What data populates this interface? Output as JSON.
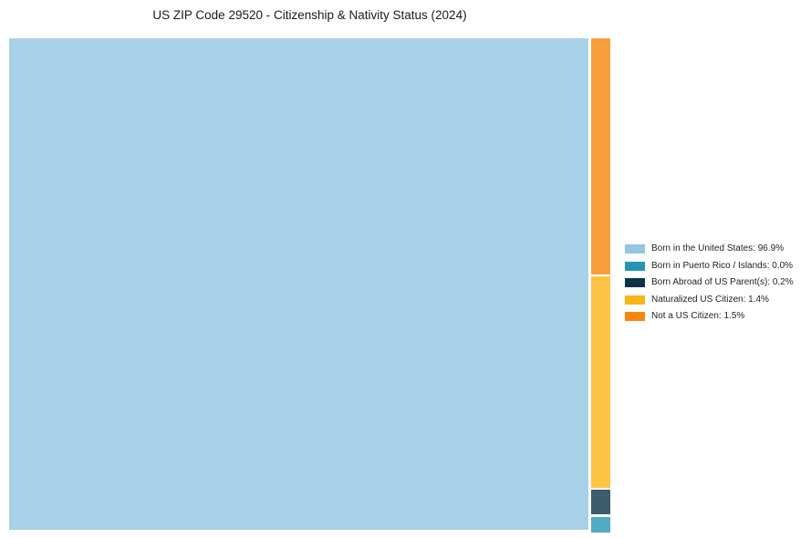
{
  "title": "US ZIP Code 29520 - Citizenship & Nativity Status (2024)",
  "chart_data": {
    "type": "treemap",
    "title": "US ZIP Code 29520 - Citizenship & Nativity Status (2024)",
    "unit": "%",
    "legend_position": "right",
    "background": "#ffffff",
    "block_opacity": 0.8,
    "series": [
      {
        "name": "Born in the United States",
        "value": 96.9,
        "color": "#92c6e2"
      },
      {
        "name": "Born in Puerto Rico / Islands",
        "value": 0.0,
        "color": "#2496b4"
      },
      {
        "name": "Born Abroad of US Parent(s)",
        "value": 0.2,
        "color": "#0e3349"
      },
      {
        "name": "Naturalized US Citizen",
        "value": 1.4,
        "color": "#fdb515"
      },
      {
        "name": "Not a US Citizen",
        "value": 1.5,
        "color": "#f6870c"
      }
    ]
  },
  "legend": {
    "items": [
      {
        "display": "Born in the United States: 96.9%"
      },
      {
        "display": "Born in Puerto Rico / Islands: 0.0%"
      },
      {
        "display": "Born Abroad of US Parent(s): 0.2%"
      },
      {
        "display": "Naturalized US Citizen: 1.4%"
      },
      {
        "display": "Not a US Citizen: 1.5%"
      }
    ]
  }
}
